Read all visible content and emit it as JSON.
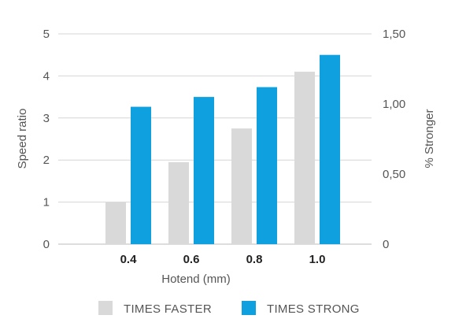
{
  "chart_data": {
    "type": "bar",
    "title": "",
    "xlabel": "Hotend (mm)",
    "ylabel": "Speed ratio",
    "y2label": "% Stronger",
    "categories": [
      "0.4",
      "0.6",
      "0.8",
      "1.0"
    ],
    "ylim": [
      0,
      5
    ],
    "y2lim": [
      0,
      1.5
    ],
    "yticks": [
      "0",
      "1",
      "2",
      "3",
      "4",
      "5"
    ],
    "y2ticks": [
      "0",
      "0,50",
      "1,00",
      "1,50"
    ],
    "grid": true,
    "legend": "bottom",
    "series": [
      {
        "name": "TIMES FASTER",
        "axis": "left",
        "color": "#d9d9d9",
        "values": [
          1.0,
          1.95,
          2.75,
          4.1
        ]
      },
      {
        "name": "TIMES STRONG",
        "axis": "right",
        "color": "#0ea0df",
        "values": [
          0.98,
          1.05,
          1.12,
          1.35
        ]
      }
    ]
  }
}
